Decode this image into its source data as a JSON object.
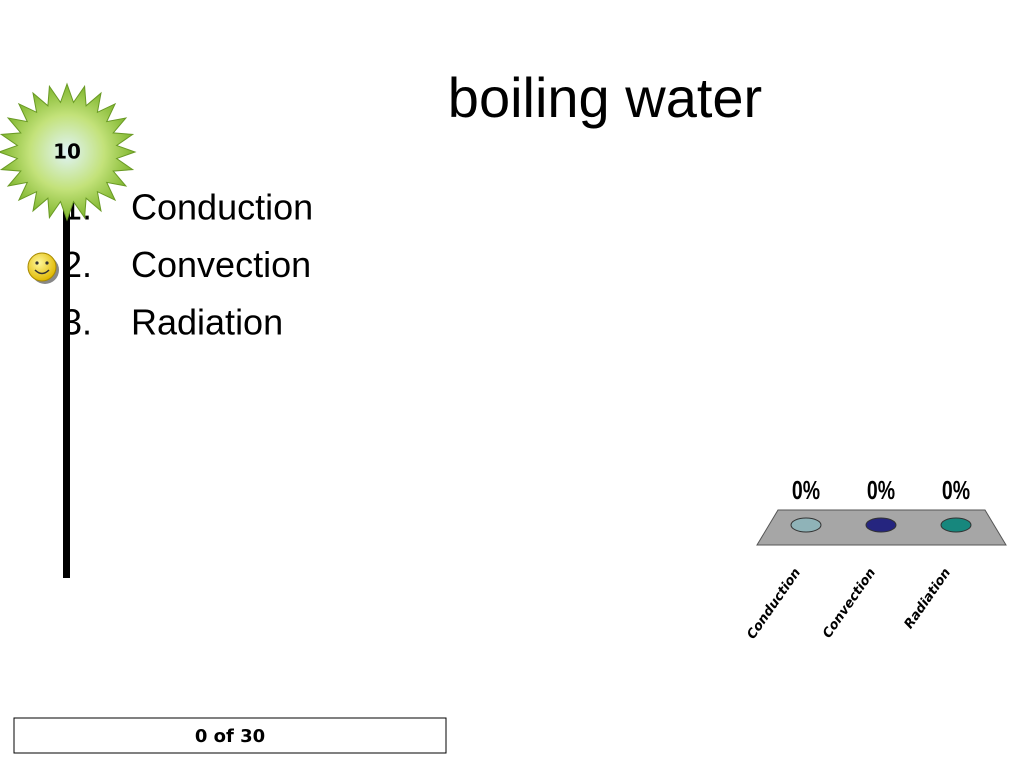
{
  "slide": {
    "title": "boiling water",
    "timer": 10,
    "options": [
      {
        "number": "1.",
        "label": "Conduction"
      },
      {
        "number": "2.",
        "label": "Convection"
      },
      {
        "number": "3.",
        "label": "Radiation"
      }
    ],
    "response_count": "0 of 30"
  },
  "chart_data": {
    "type": "bar",
    "categories": [
      "Conduction",
      "Convection",
      "Radiation"
    ],
    "values": [
      0,
      0,
      0
    ],
    "value_labels": [
      "0%",
      "0%",
      "0%"
    ],
    "colors": [
      "#8fb3b8",
      "#25257f",
      "#17877d"
    ]
  }
}
